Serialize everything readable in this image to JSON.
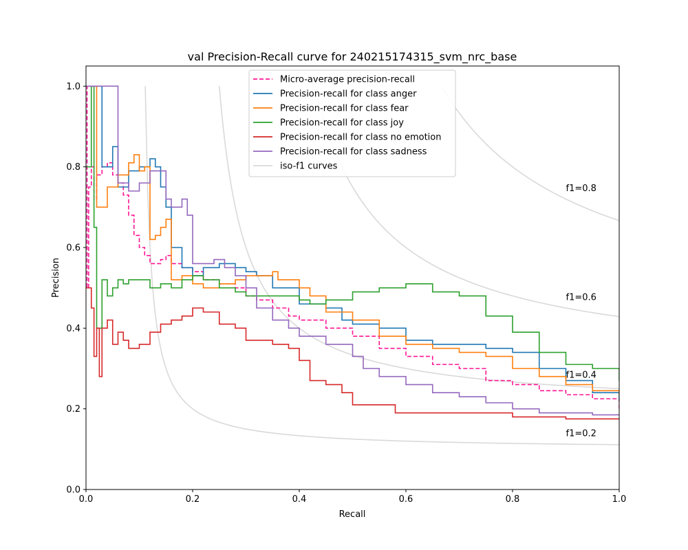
{
  "chart_data": {
    "type": "line",
    "title": "val Precision-Recall curve for 240215174315_svm_nrc_base",
    "xlabel": "Recall",
    "ylabel": "Precision",
    "xlim": [
      0.0,
      1.0
    ],
    "ylim": [
      0.0,
      1.05
    ],
    "xticks": [
      "0.0",
      "0.2",
      "0.4",
      "0.6",
      "0.8",
      "1.0"
    ],
    "yticks": [
      "0.0",
      "0.2",
      "0.4",
      "0.6",
      "0.8",
      "1.0"
    ],
    "grid": false,
    "legend_placement": "top-center",
    "iso_f1": {
      "legend_label": "iso-f1 curves",
      "color": "#d9d9d9",
      "levels": [
        {
          "f": 0.2,
          "label": "f1=0.2"
        },
        {
          "f": 0.4,
          "label": "f1=0.4"
        },
        {
          "f": 0.6,
          "label": "f1=0.6"
        },
        {
          "f": 0.8,
          "label": "f1=0.8"
        }
      ]
    },
    "series": [
      {
        "name": "Micro-average precision-recall",
        "color": "#ff1493",
        "dashed": true,
        "points": [
          [
            0.0,
            1.0
          ],
          [
            0.002,
            0.5
          ],
          [
            0.005,
            0.75
          ],
          [
            0.01,
            0.8
          ],
          [
            0.015,
            0.72
          ],
          [
            0.02,
            0.78
          ],
          [
            0.03,
            0.8
          ],
          [
            0.04,
            0.81
          ],
          [
            0.05,
            0.78
          ],
          [
            0.06,
            0.76
          ],
          [
            0.07,
            0.73
          ],
          [
            0.08,
            0.68
          ],
          [
            0.09,
            0.63
          ],
          [
            0.1,
            0.6
          ],
          [
            0.11,
            0.58
          ],
          [
            0.12,
            0.56
          ],
          [
            0.13,
            0.56
          ],
          [
            0.14,
            0.57
          ],
          [
            0.15,
            0.58
          ],
          [
            0.16,
            0.56
          ],
          [
            0.18,
            0.55
          ],
          [
            0.2,
            0.54
          ],
          [
            0.22,
            0.52
          ],
          [
            0.25,
            0.51
          ],
          [
            0.28,
            0.5
          ],
          [
            0.3,
            0.48
          ],
          [
            0.32,
            0.47
          ],
          [
            0.35,
            0.45
          ],
          [
            0.38,
            0.43
          ],
          [
            0.4,
            0.42
          ],
          [
            0.45,
            0.4
          ],
          [
            0.5,
            0.38
          ],
          [
            0.55,
            0.35
          ],
          [
            0.6,
            0.33
          ],
          [
            0.65,
            0.31
          ],
          [
            0.7,
            0.3
          ],
          [
            0.75,
            0.27
          ],
          [
            0.8,
            0.26
          ],
          [
            0.85,
            0.245
          ],
          [
            0.9,
            0.235
          ],
          [
            0.95,
            0.225
          ],
          [
            1.0,
            0.2
          ]
        ]
      },
      {
        "name": "Precision-recall for class anger",
        "color": "#1f77b4",
        "dashed": false,
        "points": [
          [
            0.0,
            1.0
          ],
          [
            0.03,
            0.8
          ],
          [
            0.05,
            0.85
          ],
          [
            0.06,
            0.75
          ],
          [
            0.08,
            0.79
          ],
          [
            0.1,
            0.8
          ],
          [
            0.12,
            0.82
          ],
          [
            0.13,
            0.8
          ],
          [
            0.14,
            0.75
          ],
          [
            0.15,
            0.7
          ],
          [
            0.16,
            0.6
          ],
          [
            0.18,
            0.55
          ],
          [
            0.2,
            0.53
          ],
          [
            0.22,
            0.55
          ],
          [
            0.25,
            0.56
          ],
          [
            0.28,
            0.55
          ],
          [
            0.3,
            0.54
          ],
          [
            0.32,
            0.53
          ],
          [
            0.35,
            0.5
          ],
          [
            0.4,
            0.46
          ],
          [
            0.42,
            0.46
          ],
          [
            0.45,
            0.45
          ],
          [
            0.48,
            0.42
          ],
          [
            0.5,
            0.41
          ],
          [
            0.55,
            0.4
          ],
          [
            0.6,
            0.37
          ],
          [
            0.65,
            0.36
          ],
          [
            0.7,
            0.36
          ],
          [
            0.75,
            0.35
          ],
          [
            0.8,
            0.34
          ],
          [
            0.85,
            0.3
          ],
          [
            0.9,
            0.27
          ],
          [
            0.95,
            0.24
          ],
          [
            1.0,
            0.22
          ]
        ]
      },
      {
        "name": "Precision-recall for class fear",
        "color": "#ff7f0e",
        "dashed": false,
        "points": [
          [
            0.0,
            1.0
          ],
          [
            0.02,
            0.7
          ],
          [
            0.04,
            0.75
          ],
          [
            0.06,
            0.78
          ],
          [
            0.08,
            0.81
          ],
          [
            0.09,
            0.83
          ],
          [
            0.1,
            0.79
          ],
          [
            0.11,
            0.8
          ],
          [
            0.12,
            0.62
          ],
          [
            0.13,
            0.63
          ],
          [
            0.14,
            0.65
          ],
          [
            0.15,
            0.67
          ],
          [
            0.16,
            0.52
          ],
          [
            0.18,
            0.53
          ],
          [
            0.2,
            0.51
          ],
          [
            0.22,
            0.5
          ],
          [
            0.25,
            0.51
          ],
          [
            0.28,
            0.52
          ],
          [
            0.3,
            0.53
          ],
          [
            0.32,
            0.53
          ],
          [
            0.35,
            0.54
          ],
          [
            0.36,
            0.52
          ],
          [
            0.4,
            0.5
          ],
          [
            0.42,
            0.48
          ],
          [
            0.45,
            0.44
          ],
          [
            0.5,
            0.42
          ],
          [
            0.55,
            0.38
          ],
          [
            0.6,
            0.36
          ],
          [
            0.65,
            0.35
          ],
          [
            0.7,
            0.34
          ],
          [
            0.75,
            0.33
          ],
          [
            0.8,
            0.3
          ],
          [
            0.85,
            0.28
          ],
          [
            0.9,
            0.26
          ],
          [
            0.95,
            0.245
          ],
          [
            1.0,
            0.235
          ]
        ]
      },
      {
        "name": "Precision-recall for class joy",
        "color": "#2ca02c",
        "dashed": false,
        "points": [
          [
            0.0,
            0.8
          ],
          [
            0.01,
            1.0
          ],
          [
            0.015,
            0.65
          ],
          [
            0.02,
            0.4
          ],
          [
            0.03,
            0.52
          ],
          [
            0.04,
            0.48
          ],
          [
            0.05,
            0.5
          ],
          [
            0.06,
            0.52
          ],
          [
            0.07,
            0.51
          ],
          [
            0.08,
            0.52
          ],
          [
            0.1,
            0.52
          ],
          [
            0.12,
            0.5
          ],
          [
            0.14,
            0.51
          ],
          [
            0.16,
            0.5
          ],
          [
            0.18,
            0.52
          ],
          [
            0.2,
            0.53
          ],
          [
            0.22,
            0.52
          ],
          [
            0.25,
            0.5
          ],
          [
            0.28,
            0.49
          ],
          [
            0.3,
            0.48
          ],
          [
            0.35,
            0.48
          ],
          [
            0.4,
            0.47
          ],
          [
            0.42,
            0.46
          ],
          [
            0.45,
            0.47
          ],
          [
            0.5,
            0.49
          ],
          [
            0.55,
            0.5
          ],
          [
            0.6,
            0.51
          ],
          [
            0.65,
            0.49
          ],
          [
            0.7,
            0.48
          ],
          [
            0.75,
            0.43
          ],
          [
            0.8,
            0.39
          ],
          [
            0.85,
            0.34
          ],
          [
            0.9,
            0.31
          ],
          [
            0.95,
            0.3
          ],
          [
            1.0,
            0.27
          ]
        ]
      },
      {
        "name": "Precision-recall for class no emotion",
        "color": "#d62728",
        "dashed": false,
        "points": [
          [
            0.0,
            0.5
          ],
          [
            0.01,
            0.45
          ],
          [
            0.015,
            0.33
          ],
          [
            0.02,
            0.4
          ],
          [
            0.025,
            0.28
          ],
          [
            0.03,
            0.4
          ],
          [
            0.04,
            0.42
          ],
          [
            0.05,
            0.36
          ],
          [
            0.06,
            0.39
          ],
          [
            0.07,
            0.37
          ],
          [
            0.08,
            0.35
          ],
          [
            0.1,
            0.36
          ],
          [
            0.12,
            0.39
          ],
          [
            0.14,
            0.41
          ],
          [
            0.16,
            0.42
          ],
          [
            0.18,
            0.43
          ],
          [
            0.2,
            0.45
          ],
          [
            0.22,
            0.44
          ],
          [
            0.25,
            0.41
          ],
          [
            0.28,
            0.4
          ],
          [
            0.3,
            0.37
          ],
          [
            0.35,
            0.36
          ],
          [
            0.38,
            0.35
          ],
          [
            0.4,
            0.32
          ],
          [
            0.42,
            0.27
          ],
          [
            0.45,
            0.26
          ],
          [
            0.48,
            0.24
          ],
          [
            0.5,
            0.21
          ],
          [
            0.55,
            0.21
          ],
          [
            0.58,
            0.19
          ],
          [
            0.6,
            0.19
          ],
          [
            0.65,
            0.19
          ],
          [
            0.7,
            0.19
          ],
          [
            0.75,
            0.19
          ],
          [
            0.8,
            0.18
          ],
          [
            0.85,
            0.18
          ],
          [
            0.9,
            0.175
          ],
          [
            0.95,
            0.175
          ],
          [
            1.0,
            0.175
          ]
        ]
      },
      {
        "name": "Precision-recall for class sadness",
        "color": "#9467bd",
        "dashed": false,
        "points": [
          [
            0.0,
            1.0
          ],
          [
            0.06,
            1.0
          ],
          [
            0.06,
            0.76
          ],
          [
            0.08,
            0.74
          ],
          [
            0.1,
            0.76
          ],
          [
            0.12,
            0.79
          ],
          [
            0.14,
            0.79
          ],
          [
            0.15,
            0.72
          ],
          [
            0.16,
            0.7
          ],
          [
            0.18,
            0.72
          ],
          [
            0.19,
            0.68
          ],
          [
            0.2,
            0.56
          ],
          [
            0.22,
            0.56
          ],
          [
            0.24,
            0.57
          ],
          [
            0.26,
            0.55
          ],
          [
            0.28,
            0.53
          ],
          [
            0.3,
            0.5
          ],
          [
            0.32,
            0.45
          ],
          [
            0.35,
            0.42
          ],
          [
            0.38,
            0.4
          ],
          [
            0.4,
            0.38
          ],
          [
            0.45,
            0.36
          ],
          [
            0.5,
            0.33
          ],
          [
            0.52,
            0.3
          ],
          [
            0.55,
            0.28
          ],
          [
            0.6,
            0.26
          ],
          [
            0.65,
            0.24
          ],
          [
            0.7,
            0.23
          ],
          [
            0.75,
            0.215
          ],
          [
            0.8,
            0.2
          ],
          [
            0.85,
            0.19
          ],
          [
            0.9,
            0.19
          ],
          [
            0.95,
            0.185
          ],
          [
            1.0,
            0.185
          ]
        ]
      }
    ]
  }
}
